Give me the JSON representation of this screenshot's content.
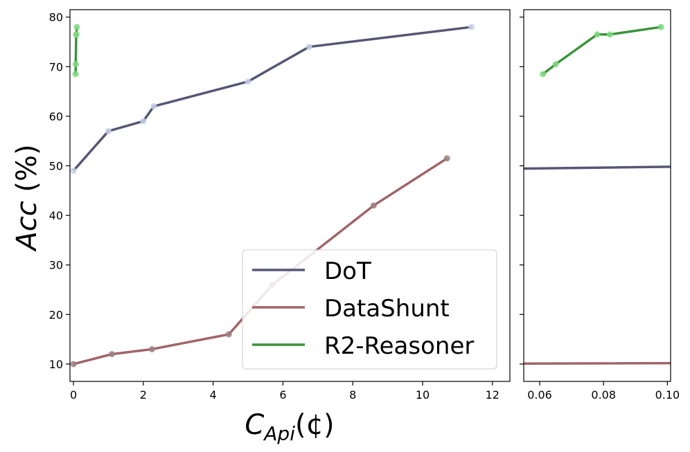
{
  "chart_data": {
    "type": "line",
    "ylabel": "Acc (%)",
    "ylabel_var": "Acc",
    "ylabel_unit": " (%)",
    "xlabel_main": "C",
    "xlabel_sub": "Api",
    "xlabel_unit": "(¢)",
    "ylim": [
      6.5,
      81.5
    ],
    "yticks": [
      10,
      20,
      30,
      40,
      50,
      60,
      70,
      80
    ],
    "legend_position": "lower-right",
    "panels": [
      {
        "name": "main",
        "xlim": [
          -0.1,
          12.5
        ],
        "xticks": [
          0,
          2,
          4,
          6,
          8,
          10,
          12
        ],
        "xtick_labels": [
          "0",
          "2",
          "4",
          "6",
          "8",
          "10",
          "12"
        ]
      },
      {
        "name": "zoom",
        "xlim": [
          0.055,
          0.101
        ],
        "xticks": [
          0.06,
          0.08,
          0.1
        ],
        "xtick_labels": [
          "0.06",
          "0.08",
          "0.10"
        ]
      }
    ],
    "series": [
      {
        "name": "DoT",
        "color": "#565676",
        "marker_color": "#c5d0ea",
        "x": [
          0.0,
          1.0,
          2.0,
          2.3,
          5.0,
          6.75,
          11.4
        ],
        "y": [
          49,
          57,
          59,
          62,
          67,
          74,
          78
        ]
      },
      {
        "name": "DataShunt",
        "color": "#a06468",
        "marker_color": "#9a8080",
        "x": [
          0.0,
          1.1,
          2.25,
          4.45,
          5.7,
          8.6,
          10.7
        ],
        "y": [
          10,
          12,
          13,
          16,
          26,
          42,
          51.5
        ]
      },
      {
        "name": "R2-Reasoner",
        "color": "#3a943a",
        "marker_color": "#7fd97f",
        "x": [
          0.061,
          0.065,
          0.078,
          0.082,
          0.098
        ],
        "y": [
          68.5,
          70.5,
          76.5,
          76.5,
          78
        ]
      }
    ]
  }
}
